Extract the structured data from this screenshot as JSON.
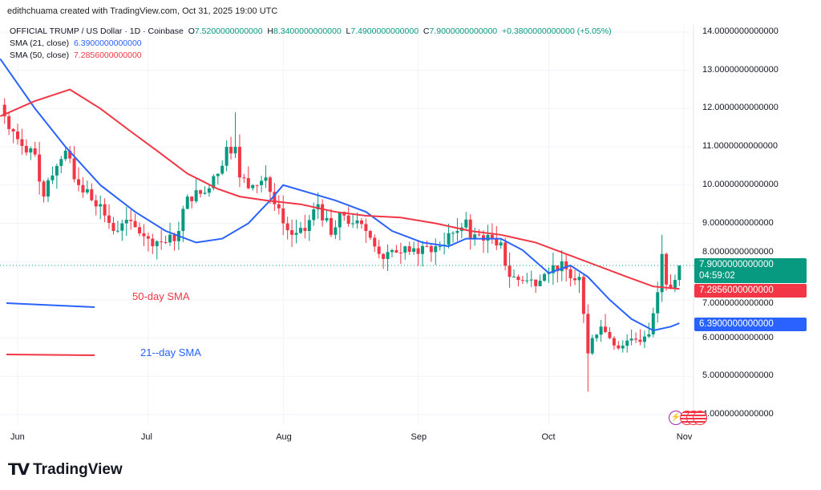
{
  "header": {
    "credit": "edithchuama created with TradingView.com, Oct 31, 2025 19:00 UTC",
    "symbol": "OFFICIAL TRUMP / US Dollar · 1D · Coinbase",
    "o_label": "O",
    "o": "7.5200000000000",
    "h_label": "H",
    "h": "8.3400000000000",
    "l_label": "L",
    "l": "7.4900000000000",
    "c_label": "C",
    "c": "7.9000000000000",
    "change": "+0.3800000000000 (+5.05%)",
    "sma21_label": "SMA (21, close)",
    "sma21_value": "6.3900000000000",
    "sma50_label": "SMA (50, close)",
    "sma50_value": "7.2856000000000"
  },
  "price_tags": {
    "last": "7.9000000000000",
    "countdown": "04:59:02",
    "sma50": "7.2856000000000",
    "sma21": "6.3900000000000"
  },
  "annotations": {
    "sma50": "50-day SMA",
    "sma21": "21--day SMA"
  },
  "footer": {
    "brand": "TradingView"
  },
  "colors": {
    "up": "#089981",
    "down": "#f23645",
    "sma21": "#2962ff",
    "sma50": "#f23645"
  },
  "chart_data": {
    "type": "candlestick",
    "ylim": [
      4,
      14
    ],
    "y_ticks": [
      "14.0000000000000",
      "13.0000000000000",
      "12.0000000000000",
      "11.0000000000000",
      "10.0000000000000",
      "9.0000000000000",
      "8.0000000000000",
      "7.0000000000000",
      "6.0000000000000",
      "5.0000000000000",
      "4.0000000000000"
    ],
    "x_ticks": [
      {
        "label": "Jun",
        "date": "2025-06-01"
      },
      {
        "label": "Jul",
        "date": "2025-07-01"
      },
      {
        "label": "Aug",
        "date": "2025-08-01"
      },
      {
        "label": "Sep",
        "date": "2025-09-01"
      },
      {
        "label": "Oct",
        "date": "2025-10-01"
      },
      {
        "label": "Nov",
        "date": "2025-11-01"
      }
    ],
    "close_keypoints": [
      [
        "2025-05-29",
        11.8
      ],
      [
        "2025-06-01",
        11.2
      ],
      [
        "2025-06-05",
        10.8
      ],
      [
        "2025-06-07",
        9.7
      ],
      [
        "2025-06-10",
        10.5
      ],
      [
        "2025-06-12",
        10.9
      ],
      [
        "2025-06-15",
        10.0
      ],
      [
        "2025-06-20",
        9.5
      ],
      [
        "2025-06-23",
        8.8
      ],
      [
        "2025-06-25",
        9.0
      ],
      [
        "2025-06-28",
        8.9
      ],
      [
        "2025-07-01",
        8.6
      ],
      [
        "2025-07-05",
        8.5
      ],
      [
        "2025-07-08",
        8.8
      ],
      [
        "2025-07-10",
        9.7
      ],
      [
        "2025-07-14",
        9.8
      ],
      [
        "2025-07-17",
        10.3
      ],
      [
        "2025-07-19",
        11.0
      ],
      [
        "2025-07-21",
        11.0
      ],
      [
        "2025-07-22",
        10.2
      ],
      [
        "2025-07-25",
        10.0
      ],
      [
        "2025-07-28",
        10.2
      ],
      [
        "2025-07-30",
        9.5
      ],
      [
        "2025-08-01",
        9.0
      ],
      [
        "2025-08-03",
        8.7
      ],
      [
        "2025-08-06",
        8.8
      ],
      [
        "2025-08-09",
        9.5
      ],
      [
        "2025-08-12",
        8.7
      ],
      [
        "2025-08-14",
        9.3
      ],
      [
        "2025-08-17",
        9.0
      ],
      [
        "2025-08-20",
        8.8
      ],
      [
        "2025-08-23",
        8.2
      ],
      [
        "2025-08-26",
        8.3
      ],
      [
        "2025-08-29",
        8.4
      ],
      [
        "2025-09-01",
        8.2
      ],
      [
        "2025-09-05",
        8.4
      ],
      [
        "2025-09-10",
        8.8
      ],
      [
        "2025-09-12",
        9.1
      ],
      [
        "2025-09-13",
        8.6
      ],
      [
        "2025-09-17",
        8.7
      ],
      [
        "2025-09-20",
        8.5
      ],
      [
        "2025-09-22",
        7.6
      ],
      [
        "2025-09-25",
        7.5
      ],
      [
        "2025-09-29",
        7.5
      ],
      [
        "2025-10-02",
        7.9
      ],
      [
        "2025-10-05",
        7.8
      ],
      [
        "2025-10-08",
        7.6
      ],
      [
        "2025-10-10",
        5.6
      ],
      [
        "2025-10-11",
        6.0
      ],
      [
        "2025-10-13",
        6.3
      ],
      [
        "2025-10-15",
        6.0
      ],
      [
        "2025-10-18",
        5.8
      ],
      [
        "2025-10-22",
        5.9
      ],
      [
        "2025-10-24",
        6.1
      ],
      [
        "2025-10-26",
        7.2
      ],
      [
        "2025-10-27",
        8.2
      ],
      [
        "2025-10-28",
        7.4
      ],
      [
        "2025-10-29",
        7.3
      ],
      [
        "2025-10-30",
        7.52
      ],
      [
        "2025-10-31",
        7.9
      ]
    ],
    "series": [
      {
        "name": "SMA (21, close)",
        "points": [
          [
            "2025-05-28",
            13.3
          ],
          [
            "2025-06-05",
            12.0
          ],
          [
            "2025-06-12",
            11.0
          ],
          [
            "2025-06-20",
            10.0
          ],
          [
            "2025-06-28",
            9.3
          ],
          [
            "2025-07-05",
            8.8
          ],
          [
            "2025-07-12",
            8.5
          ],
          [
            "2025-07-18",
            8.6
          ],
          [
            "2025-07-24",
            9.0
          ],
          [
            "2025-07-29",
            9.6
          ],
          [
            "2025-08-01",
            10.0
          ],
          [
            "2025-08-07",
            9.8
          ],
          [
            "2025-08-13",
            9.6
          ],
          [
            "2025-08-20",
            9.3
          ],
          [
            "2025-08-26",
            8.8
          ],
          [
            "2025-09-02",
            8.5
          ],
          [
            "2025-09-08",
            8.4
          ],
          [
            "2025-09-12",
            8.6
          ],
          [
            "2025-09-20",
            8.6
          ],
          [
            "2025-09-25",
            8.3
          ],
          [
            "2025-10-01",
            7.7
          ],
          [
            "2025-10-06",
            7.9
          ],
          [
            "2025-10-10",
            7.6
          ],
          [
            "2025-10-15",
            7.0
          ],
          [
            "2025-10-20",
            6.5
          ],
          [
            "2025-10-25",
            6.2
          ],
          [
            "2025-10-29",
            6.3
          ],
          [
            "2025-10-31",
            6.39
          ]
        ]
      },
      {
        "name": "SMA (50, close)",
        "points": [
          [
            "2025-05-28",
            11.8
          ],
          [
            "2025-06-05",
            12.2
          ],
          [
            "2025-06-13",
            12.5
          ],
          [
            "2025-06-20",
            12.0
          ],
          [
            "2025-06-27",
            11.4
          ],
          [
            "2025-07-03",
            10.9
          ],
          [
            "2025-07-10",
            10.3
          ],
          [
            "2025-07-17",
            9.9
          ],
          [
            "2025-07-22",
            9.7
          ],
          [
            "2025-07-28",
            9.6
          ],
          [
            "2025-08-05",
            9.5
          ],
          [
            "2025-08-13",
            9.3
          ],
          [
            "2025-08-20",
            9.2
          ],
          [
            "2025-08-28",
            9.15
          ],
          [
            "2025-09-05",
            9.0
          ],
          [
            "2025-09-13",
            8.8
          ],
          [
            "2025-09-20",
            8.7
          ],
          [
            "2025-09-28",
            8.5
          ],
          [
            "2025-10-05",
            8.2
          ],
          [
            "2025-10-12",
            7.9
          ],
          [
            "2025-10-19",
            7.6
          ],
          [
            "2025-10-25",
            7.35
          ],
          [
            "2025-10-31",
            7.2856
          ]
        ]
      }
    ],
    "grid": true
  }
}
